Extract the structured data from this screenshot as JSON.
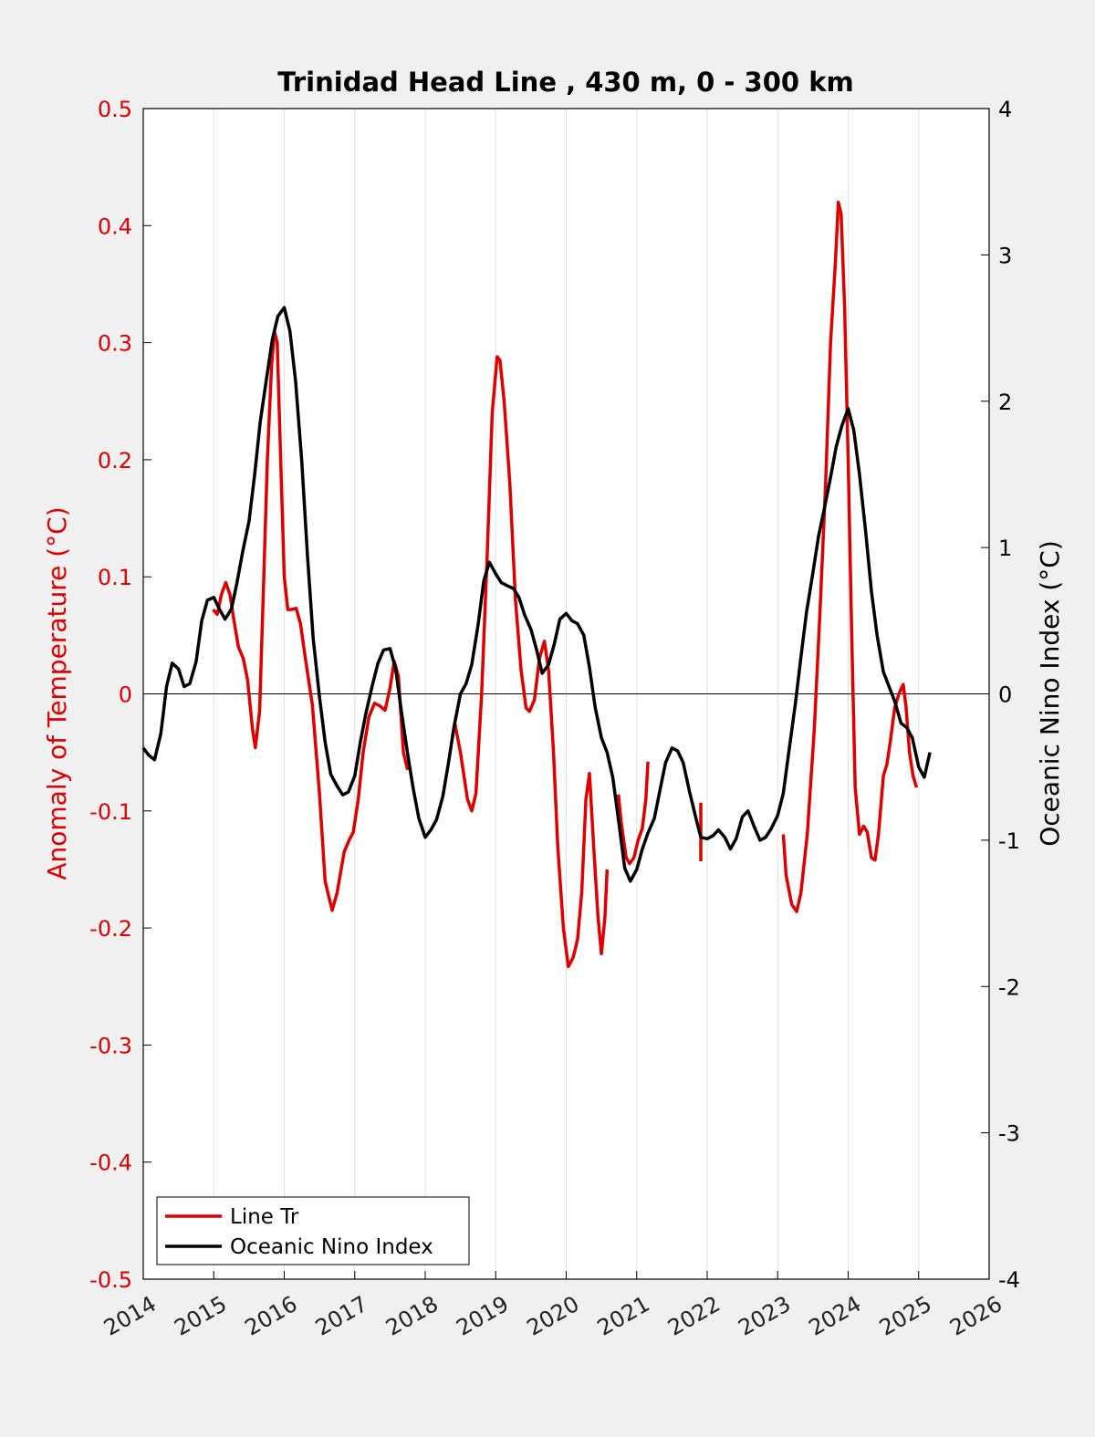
{
  "chart_data": {
    "type": "line",
    "title": "Trinidad Head Line , 430 m, 0 - 300 km",
    "ylabel_left": "Anomaly of Temperature (°C)",
    "ylabel_right": "Oceanic Nino Index (°C)",
    "xlim": [
      2014,
      2026
    ],
    "ylim_left": [
      -0.5,
      0.5
    ],
    "ylim_right": [
      -4,
      4
    ],
    "x_ticks": [
      "2014",
      "2015",
      "2016",
      "2017",
      "2018",
      "2019",
      "2020",
      "2021",
      "2022",
      "2023",
      "2024",
      "2025",
      "2026"
    ],
    "y_left_ticks": [
      "0.5",
      "0.4",
      "0.3",
      "0.2",
      "0.1",
      "0",
      "-0.1",
      "-0.2",
      "-0.3",
      "-0.4",
      "-0.5"
    ],
    "y_right_ticks": [
      "4",
      "3",
      "2",
      "1",
      "0",
      "-1",
      "-2",
      "-3",
      "-4"
    ],
    "grid": "vertical",
    "legend_position": "bottom-left",
    "series": [
      {
        "name": "Line Tr",
        "axis": "left",
        "color": "#e00000",
        "segments": [
          [
            [
              2014.99,
              0.072
            ],
            [
              2015.05,
              0.068
            ],
            [
              2015.11,
              0.085
            ],
            [
              2015.17,
              0.095
            ],
            [
              2015.23,
              0.085
            ],
            [
              2015.28,
              0.065
            ],
            [
              2015.35,
              0.04
            ],
            [
              2015.42,
              0.03
            ],
            [
              2015.48,
              0.012
            ],
            [
              2015.55,
              -0.03
            ],
            [
              2015.59,
              -0.046
            ],
            [
              2015.65,
              -0.015
            ],
            [
              2015.71,
              0.1
            ],
            [
              2015.76,
              0.2
            ],
            [
              2015.82,
              0.28
            ],
            [
              2015.86,
              0.31
            ],
            [
              2015.9,
              0.3
            ],
            [
              2015.95,
              0.2
            ],
            [
              2016.0,
              0.1
            ],
            [
              2016.05,
              0.072
            ],
            [
              2016.1,
              0.072
            ],
            [
              2016.17,
              0.073
            ],
            [
              2016.23,
              0.06
            ],
            [
              2016.3,
              0.03
            ],
            [
              2016.4,
              -0.01
            ],
            [
              2016.5,
              -0.085
            ],
            [
              2016.58,
              -0.16
            ],
            [
              2016.68,
              -0.185
            ],
            [
              2016.75,
              -0.17
            ],
            [
              2016.85,
              -0.135
            ],
            [
              2016.92,
              -0.125
            ],
            [
              2016.98,
              -0.118
            ],
            [
              2017.05,
              -0.09
            ],
            [
              2017.12,
              -0.05
            ],
            [
              2017.2,
              -0.02
            ],
            [
              2017.28,
              -0.008
            ],
            [
              2017.35,
              -0.01
            ],
            [
              2017.43,
              -0.014
            ],
            [
              2017.5,
              0.005
            ],
            [
              2017.56,
              0.028
            ],
            [
              2017.62,
              0.015
            ],
            [
              2017.69,
              -0.05
            ],
            [
              2017.75,
              -0.065
            ]
          ],
          [
            [
              2018.42,
              -0.025
            ],
            [
              2018.5,
              -0.05
            ],
            [
              2018.6,
              -0.09
            ],
            [
              2018.66,
              -0.1
            ],
            [
              2018.72,
              -0.085
            ],
            [
              2018.8,
              0.0
            ],
            [
              2018.88,
              0.12
            ],
            [
              2018.95,
              0.24
            ],
            [
              2019.02,
              0.288
            ],
            [
              2019.06,
              0.285
            ],
            [
              2019.12,
              0.25
            ],
            [
              2019.2,
              0.18
            ],
            [
              2019.28,
              0.08
            ],
            [
              2019.36,
              0.02
            ],
            [
              2019.43,
              -0.012
            ],
            [
              2019.48,
              -0.015
            ],
            [
              2019.55,
              -0.005
            ],
            [
              2019.62,
              0.03
            ],
            [
              2019.69,
              0.045
            ],
            [
              2019.75,
              0.02
            ],
            [
              2019.82,
              -0.05
            ],
            [
              2019.88,
              -0.13
            ],
            [
              2019.96,
              -0.2
            ],
            [
              2020.03,
              -0.233
            ],
            [
              2020.1,
              -0.225
            ],
            [
              2020.16,
              -0.21
            ],
            [
              2020.22,
              -0.17
            ],
            [
              2020.28,
              -0.09
            ],
            [
              2020.33,
              -0.068
            ],
            [
              2020.39,
              -0.13
            ],
            [
              2020.45,
              -0.19
            ],
            [
              2020.5,
              -0.222
            ],
            [
              2020.55,
              -0.19
            ],
            [
              2020.58,
              -0.15
            ]
          ],
          [
            [
              2020.74,
              -0.086
            ],
            [
              2020.78,
              -0.11
            ],
            [
              2020.85,
              -0.14
            ],
            [
              2020.9,
              -0.145
            ],
            [
              2020.96,
              -0.14
            ],
            [
              2021.02,
              -0.125
            ],
            [
              2021.08,
              -0.115
            ],
            [
              2021.13,
              -0.09
            ],
            [
              2021.16,
              -0.058
            ]
          ],
          [
            [
              2021.91,
              -0.093
            ],
            [
              2021.91,
              -0.143
            ]
          ],
          [
            [
              2023.08,
              -0.12
            ],
            [
              2023.12,
              -0.155
            ],
            [
              2023.2,
              -0.18
            ],
            [
              2023.27,
              -0.186
            ],
            [
              2023.33,
              -0.17
            ],
            [
              2023.42,
              -0.12
            ],
            [
              2023.52,
              -0.03
            ],
            [
              2023.6,
              0.07
            ],
            [
              2023.68,
              0.18
            ],
            [
              2023.75,
              0.3
            ],
            [
              2023.82,
              0.37
            ],
            [
              2023.86,
              0.42
            ],
            [
              2023.9,
              0.41
            ],
            [
              2023.95,
              0.33
            ],
            [
              2024.0,
              0.2
            ],
            [
              2024.05,
              0.05
            ],
            [
              2024.1,
              -0.08
            ],
            [
              2024.16,
              -0.12
            ],
            [
              2024.22,
              -0.113
            ],
            [
              2024.27,
              -0.118
            ],
            [
              2024.33,
              -0.14
            ],
            [
              2024.38,
              -0.142
            ],
            [
              2024.43,
              -0.12
            ],
            [
              2024.5,
              -0.07
            ],
            [
              2024.55,
              -0.06
            ],
            [
              2024.6,
              -0.04
            ],
            [
              2024.66,
              -0.012
            ],
            [
              2024.72,
              0.0
            ],
            [
              2024.78,
              0.008
            ],
            [
              2024.82,
              -0.01
            ],
            [
              2024.87,
              -0.05
            ],
            [
              2024.92,
              -0.07
            ],
            [
              2024.97,
              -0.08
            ]
          ]
        ]
      },
      {
        "name": "Oceanic Nino Index",
        "axis": "right",
        "color": "#000000",
        "segments": [
          [
            [
              2014.0,
              -0.37
            ],
            [
              2014.08,
              -0.42
            ],
            [
              2014.16,
              -0.45
            ],
            [
              2014.25,
              -0.27
            ],
            [
              2014.33,
              0.05
            ],
            [
              2014.41,
              0.21
            ],
            [
              2014.5,
              0.17
            ],
            [
              2014.58,
              0.05
            ],
            [
              2014.66,
              0.07
            ],
            [
              2014.75,
              0.22
            ],
            [
              2014.83,
              0.5
            ],
            [
              2014.91,
              0.64
            ],
            [
              2015.0,
              0.66
            ],
            [
              2015.08,
              0.58
            ],
            [
              2015.16,
              0.51
            ],
            [
              2015.25,
              0.58
            ],
            [
              2015.33,
              0.76
            ],
            [
              2015.41,
              0.97
            ],
            [
              2015.5,
              1.18
            ],
            [
              2015.58,
              1.5
            ],
            [
              2015.66,
              1.86
            ],
            [
              2015.75,
              2.16
            ],
            [
              2015.83,
              2.42
            ],
            [
              2015.91,
              2.58
            ],
            [
              2016.0,
              2.64
            ],
            [
              2016.08,
              2.48
            ],
            [
              2016.16,
              2.14
            ],
            [
              2016.25,
              1.58
            ],
            [
              2016.33,
              0.94
            ],
            [
              2016.41,
              0.38
            ],
            [
              2016.5,
              -0.02
            ],
            [
              2016.58,
              -0.33
            ],
            [
              2016.66,
              -0.55
            ],
            [
              2016.75,
              -0.63
            ],
            [
              2016.83,
              -0.69
            ],
            [
              2016.91,
              -0.67
            ],
            [
              2017.0,
              -0.56
            ],
            [
              2017.08,
              -0.33
            ],
            [
              2017.16,
              -0.13
            ],
            [
              2017.25,
              0.06
            ],
            [
              2017.33,
              0.21
            ],
            [
              2017.41,
              0.3
            ],
            [
              2017.5,
              0.31
            ],
            [
              2017.58,
              0.17
            ],
            [
              2017.66,
              -0.11
            ],
            [
              2017.75,
              -0.41
            ],
            [
              2017.83,
              -0.65
            ],
            [
              2017.91,
              -0.85
            ],
            [
              2018.0,
              -0.98
            ],
            [
              2018.08,
              -0.93
            ],
            [
              2018.16,
              -0.86
            ],
            [
              2018.25,
              -0.7
            ],
            [
              2018.33,
              -0.47
            ],
            [
              2018.41,
              -0.22
            ],
            [
              2018.5,
              0.0
            ],
            [
              2018.58,
              0.07
            ],
            [
              2018.66,
              0.2
            ],
            [
              2018.75,
              0.47
            ],
            [
              2018.83,
              0.77
            ],
            [
              2018.91,
              0.9
            ],
            [
              2019.0,
              0.82
            ],
            [
              2019.08,
              0.76
            ],
            [
              2019.16,
              0.74
            ],
            [
              2019.25,
              0.72
            ],
            [
              2019.33,
              0.66
            ],
            [
              2019.41,
              0.54
            ],
            [
              2019.5,
              0.44
            ],
            [
              2019.58,
              0.3
            ],
            [
              2019.66,
              0.14
            ],
            [
              2019.75,
              0.2
            ],
            [
              2019.83,
              0.34
            ],
            [
              2019.91,
              0.51
            ],
            [
              2020.0,
              0.55
            ],
            [
              2020.08,
              0.5
            ],
            [
              2020.16,
              0.48
            ],
            [
              2020.25,
              0.4
            ],
            [
              2020.33,
              0.18
            ],
            [
              2020.41,
              -0.09
            ],
            [
              2020.5,
              -0.3
            ],
            [
              2020.58,
              -0.4
            ],
            [
              2020.66,
              -0.57
            ],
            [
              2020.75,
              -0.89
            ],
            [
              2020.83,
              -1.19
            ],
            [
              2020.91,
              -1.28
            ],
            [
              2021.0,
              -1.2
            ],
            [
              2021.08,
              -1.06
            ],
            [
              2021.16,
              -0.95
            ],
            [
              2021.25,
              -0.85
            ],
            [
              2021.33,
              -0.66
            ],
            [
              2021.41,
              -0.47
            ],
            [
              2021.5,
              -0.37
            ],
            [
              2021.58,
              -0.39
            ],
            [
              2021.66,
              -0.47
            ],
            [
              2021.75,
              -0.67
            ],
            [
              2021.83,
              -0.83
            ],
            [
              2021.91,
              -0.98
            ],
            [
              2022.0,
              -0.99
            ],
            [
              2022.08,
              -0.97
            ],
            [
              2022.16,
              -0.93
            ],
            [
              2022.25,
              -0.98
            ],
            [
              2022.33,
              -1.06
            ],
            [
              2022.41,
              -0.99
            ],
            [
              2022.5,
              -0.84
            ],
            [
              2022.58,
              -0.8
            ],
            [
              2022.66,
              -0.9
            ],
            [
              2022.75,
              -1.0
            ],
            [
              2022.83,
              -0.98
            ],
            [
              2022.91,
              -0.92
            ],
            [
              2023.0,
              -0.83
            ],
            [
              2023.08,
              -0.68
            ],
            [
              2023.16,
              -0.39
            ],
            [
              2023.25,
              -0.07
            ],
            [
              2023.33,
              0.25
            ],
            [
              2023.41,
              0.56
            ],
            [
              2023.5,
              0.83
            ],
            [
              2023.58,
              1.08
            ],
            [
              2023.66,
              1.26
            ],
            [
              2023.75,
              1.48
            ],
            [
              2023.83,
              1.69
            ],
            [
              2023.91,
              1.83
            ],
            [
              2024.0,
              1.95
            ],
            [
              2024.08,
              1.8
            ],
            [
              2024.16,
              1.5
            ],
            [
              2024.25,
              1.1
            ],
            [
              2024.33,
              0.7
            ],
            [
              2024.41,
              0.4
            ],
            [
              2024.5,
              0.15
            ],
            [
              2024.58,
              0.05
            ],
            [
              2024.66,
              -0.05
            ],
            [
              2024.75,
              -0.2
            ],
            [
              2024.83,
              -0.23
            ],
            [
              2024.91,
              -0.3
            ],
            [
              2025.0,
              -0.5
            ],
            [
              2025.08,
              -0.57
            ],
            [
              2025.16,
              -0.4
            ]
          ]
        ]
      }
    ]
  },
  "legend": {
    "items": [
      {
        "label": "Line Tr",
        "color": "#e00000"
      },
      {
        "label": "Oceanic Nino Index",
        "color": "#000000"
      }
    ]
  }
}
